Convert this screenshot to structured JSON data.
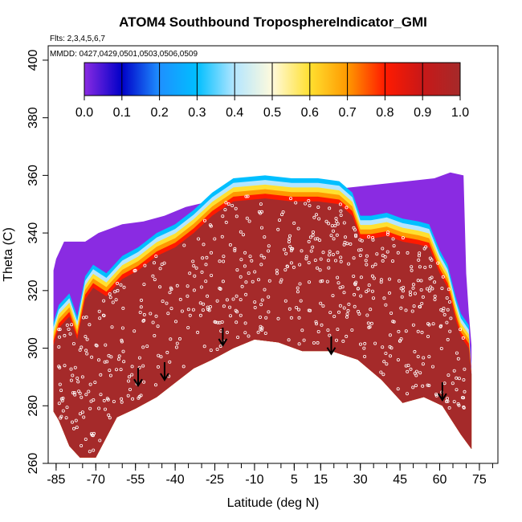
{
  "chart_data": {
    "type": "heatmap",
    "title": "ATOM4 Southbound TroposphereIndicator_GMI",
    "flights_label": "Flts: 2,3,4,5,6,7",
    "mmdd_label": "MMDD: 0427,0429,0501,0503,0506,0509",
    "xlabel": "Latitude (deg N)",
    "ylabel": "Theta (C)",
    "xlim": [
      -88,
      82
    ],
    "ylim": [
      260,
      405
    ],
    "x_ticks": [
      -85,
      -70,
      -55,
      -40,
      -25,
      -10,
      5,
      15,
      30,
      45,
      60,
      75
    ],
    "y_ticks": [
      260,
      280,
      300,
      320,
      340,
      360,
      380,
      400
    ],
    "colorbar": {
      "range": [
        0.0,
        1.0
      ],
      "tick_labels": [
        "0.0",
        "0.1",
        "0.2",
        "0.3",
        "0.4",
        "0.5",
        "0.6",
        "0.7",
        "0.8",
        "0.9",
        "1.0"
      ],
      "colors": [
        "#8a2be2",
        "#0000c8",
        "#1e90ff",
        "#00bfff",
        "#b4e6ff",
        "#fffadc",
        "#ffe030",
        "#ff9900",
        "#ff1a00",
        "#c81818",
        "#a52a2a"
      ]
    },
    "surface_arrows": [
      {
        "lat": -54,
        "theta": 287
      },
      {
        "lat": -44,
        "theta": 289
      },
      {
        "lat": -22,
        "theta": 301
      },
      {
        "lat": 19,
        "theta": 298
      },
      {
        "lat": 61,
        "theta": 282
      }
    ],
    "field_colors": {
      "troposphere": "#a52a2a",
      "stratosphere": "#8a2be2",
      "points": "#ffffff",
      "background": "#ffffff"
    }
  }
}
